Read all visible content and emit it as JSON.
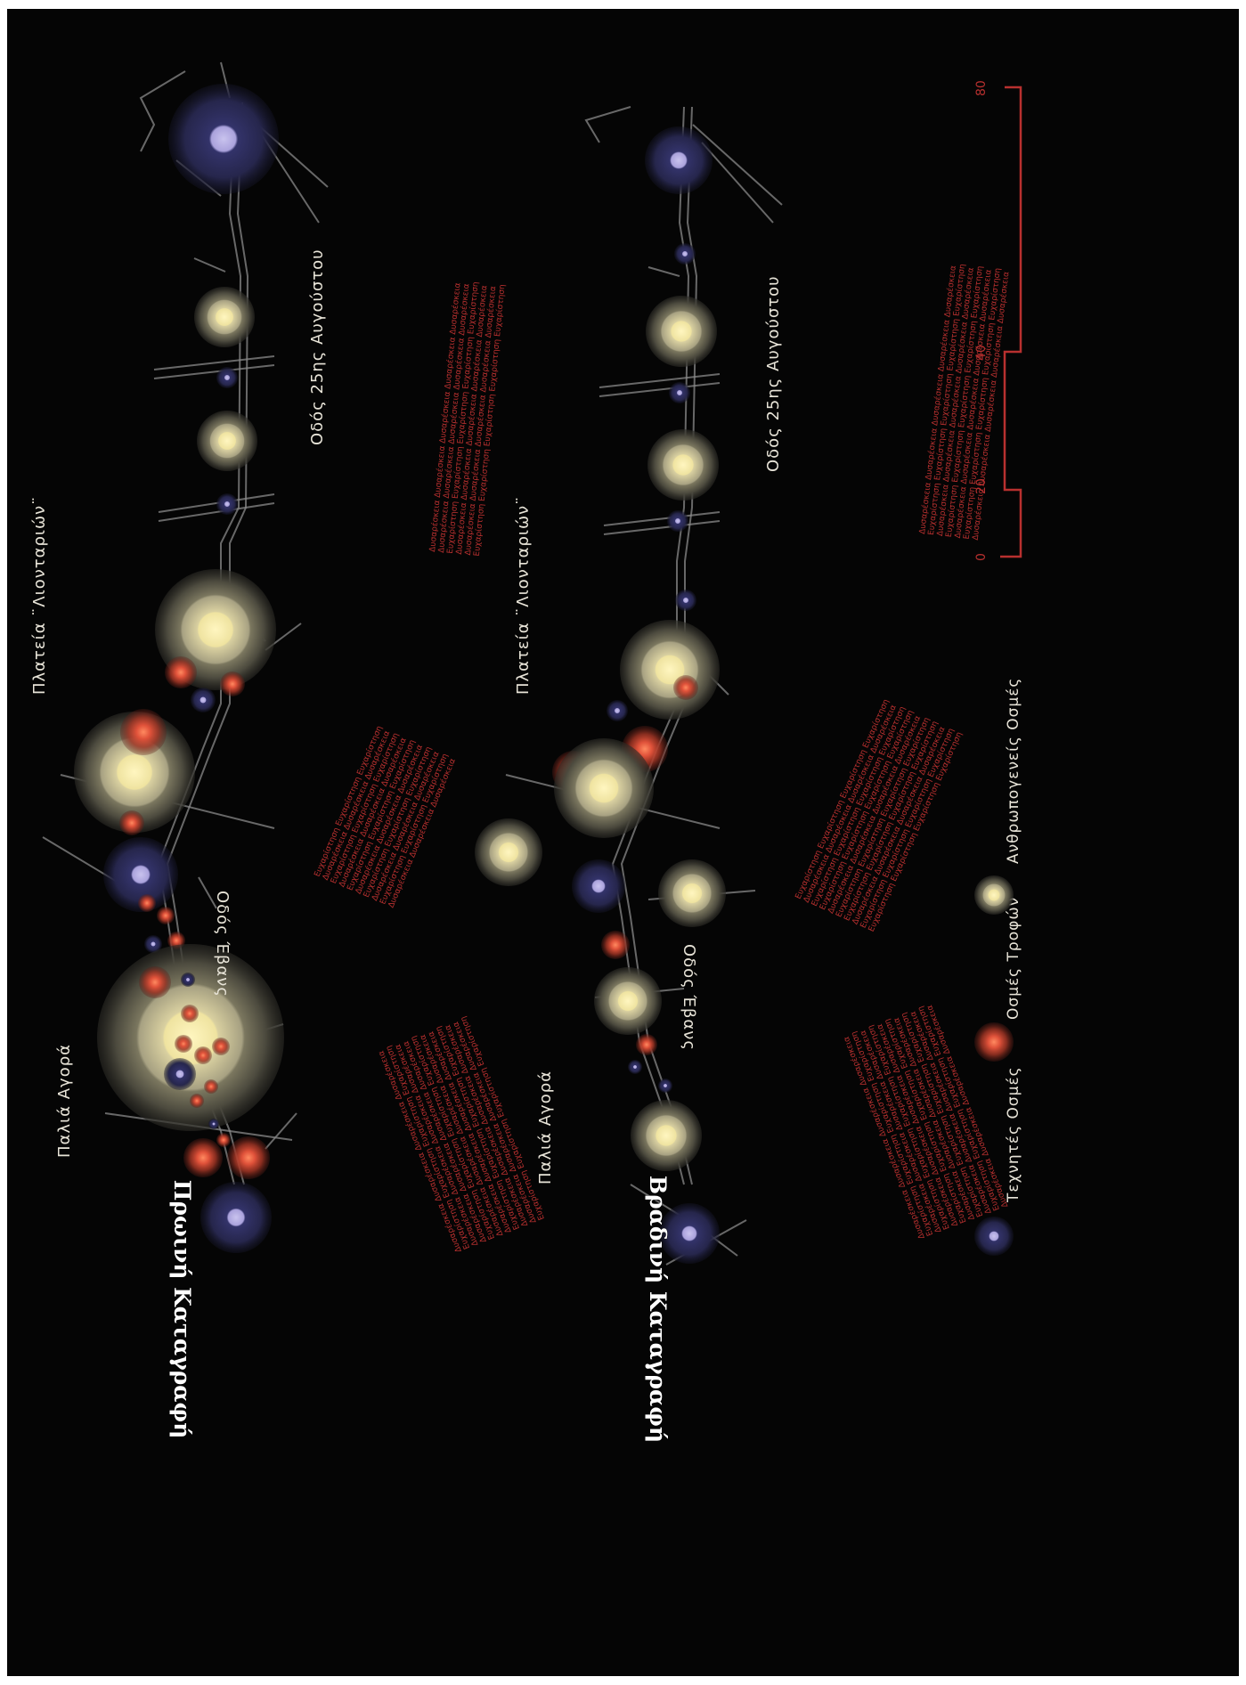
{
  "panels": {
    "morning": {
      "title": "Πρωινή Καταγραφή",
      "places": {
        "old_market": "Παλιά Αγορά",
        "evans_street": "Οδός Έβανς",
        "lions_square": "Πλατεία ¨Λιονταριών¨",
        "august_street": "Οδός 25ης Αυγούστου"
      }
    },
    "evening": {
      "title": "Βραδινή Καταγραφή",
      "places": {
        "old_market": "Παλιά Αγορά",
        "evans_street": "Οδός Έβανς",
        "lions_square": "Πλατεία ¨Λιονταριών¨",
        "august_street": "Οδός 25ης Αυγούστου"
      }
    }
  },
  "legend": {
    "artificial": "Τεχνητές Οσμές",
    "food": "Οσμές Τροφών",
    "human": "Ανθρωπογενείς Οσμές"
  },
  "feelings": {
    "unpleasant": "Δυσαρέσκεια",
    "pleasant": "Ευχαρίστηση"
  },
  "scale": {
    "ticks": [
      "0",
      "20",
      "40",
      "80"
    ]
  },
  "colors": {
    "background": "#050505",
    "artificial": "#3a3a78",
    "artificial_core": "#b8b2e0",
    "food": "#c0402c",
    "food_core": "#ff7a58",
    "human": "#6a6650",
    "human_core": "#f0e6a4",
    "text_red": "#b8302f",
    "street": "#8a8a8a"
  }
}
